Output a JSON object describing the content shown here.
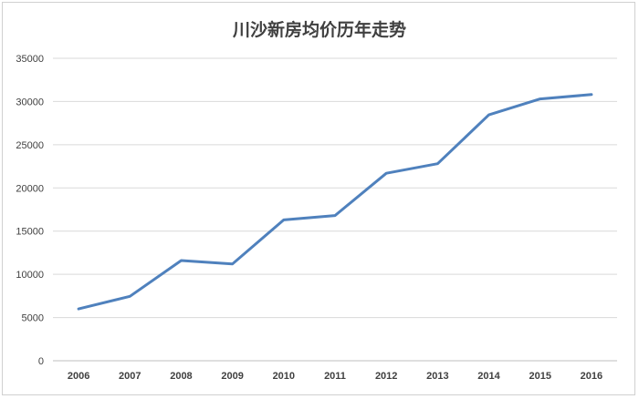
{
  "chart_data": {
    "type": "line",
    "title": "川沙新房均价历年走势",
    "xlabel": "",
    "ylabel": "",
    "categories": [
      "2006",
      "2007",
      "2008",
      "2009",
      "2010",
      "2011",
      "2012",
      "2013",
      "2014",
      "2015",
      "2016"
    ],
    "series": [
      {
        "values": [
          6000,
          7450,
          11600,
          11200,
          16300,
          16800,
          21700,
          22800,
          28450,
          30300,
          30800
        ],
        "color": "#4f81bd"
      }
    ],
    "ylim": [
      0,
      35000
    ],
    "yticks": [
      0,
      5000,
      10000,
      15000,
      20000,
      25000,
      30000,
      35000
    ],
    "grid": true,
    "legend": "none"
  }
}
